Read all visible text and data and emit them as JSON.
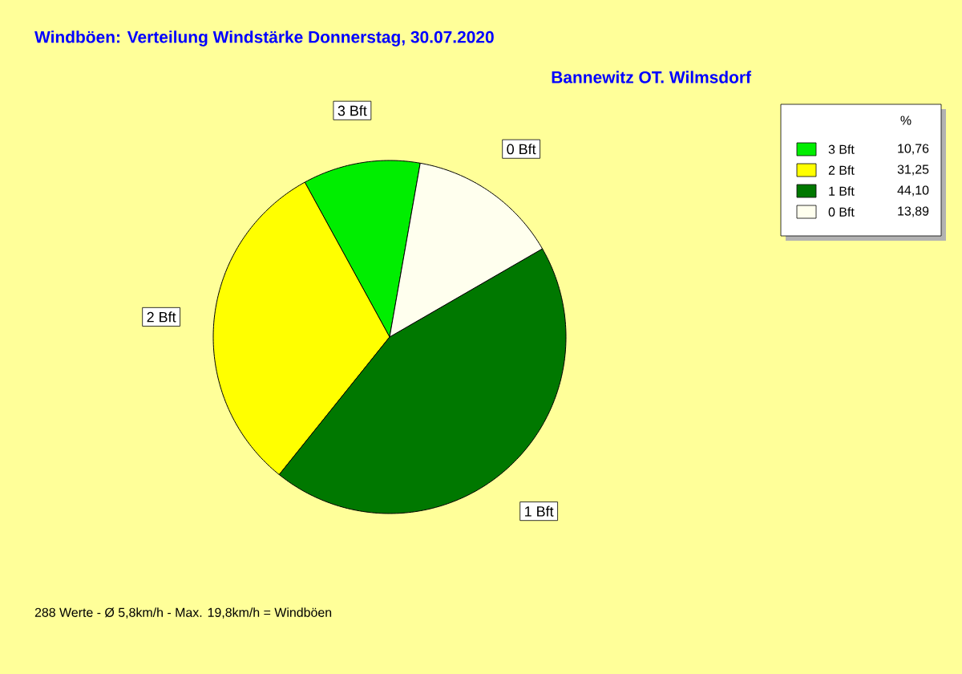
{
  "chart_data": {
    "type": "pie",
    "title": "Windböen: Verteilung Windstärke  Donnerstag, 30.07.2020",
    "subtitle": "Bannewitz OT. Wilmsdorf",
    "categories": [
      "3 Bft",
      "2 Bft",
      "1 Bft",
      "0 Bft"
    ],
    "values": [
      10.76,
      31.25,
      44.1,
      13.89
    ],
    "value_labels": [
      "10,76",
      "31,25",
      "44,10",
      "13,89"
    ],
    "colors": [
      "#00ee00",
      "#ffff00",
      "#007800",
      "#ffffee"
    ],
    "legend": "top right",
    "legend_title": "%",
    "annotations": [
      "288 Werte   -   Ø 5,8km/h  -  Max. 19,8km/h = Windböen"
    ]
  }
}
